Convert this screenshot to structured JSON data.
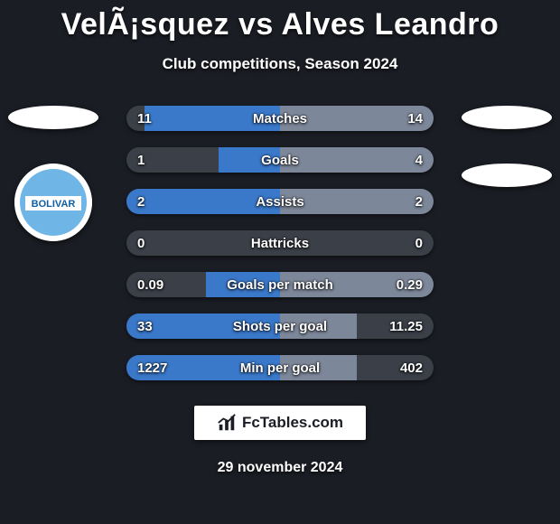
{
  "background_color": "#1a1d24",
  "title": "VelÃ¡squez vs Alves Leandro",
  "title_fontsize": 34,
  "subtitle": "Club competitions, Season 2024",
  "subtitle_fontsize": 17,
  "date": "29 november 2024",
  "branding": {
    "text": "FcTables.com"
  },
  "left_crests": [
    {
      "type": "placeholder"
    },
    {
      "type": "badge",
      "label": "BOLIVAR",
      "stripe_color": "#6fb6e6",
      "text_color": "#0d5fa6"
    }
  ],
  "right_crests": [
    {
      "type": "placeholder"
    },
    {
      "type": "placeholder"
    }
  ],
  "bar_track_color": "#3a3f48",
  "left_fill_color": "#3a78c9",
  "right_fill_color": "#7c8799",
  "stats": [
    {
      "label": "Matches",
      "left_val": "11",
      "right_val": "14",
      "left_pct": 44,
      "right_pct": 56
    },
    {
      "label": "Goals",
      "left_val": "1",
      "right_val": "4",
      "left_pct": 20,
      "right_pct": 80
    },
    {
      "label": "Assists",
      "left_val": "2",
      "right_val": "2",
      "left_pct": 50,
      "right_pct": 50
    },
    {
      "label": "Hattricks",
      "left_val": "0",
      "right_val": "0",
      "left_pct": 0,
      "right_pct": 0
    },
    {
      "label": "Goals per match",
      "left_val": "0.09",
      "right_val": "0.29",
      "left_pct": 24,
      "right_pct": 76
    },
    {
      "label": "Shots per goal",
      "left_val": "33",
      "right_val": "11.25",
      "left_pct": 75,
      "right_pct": 25
    },
    {
      "label": "Min per goal",
      "left_val": "1227",
      "right_val": "402",
      "left_pct": 75,
      "right_pct": 25
    }
  ]
}
